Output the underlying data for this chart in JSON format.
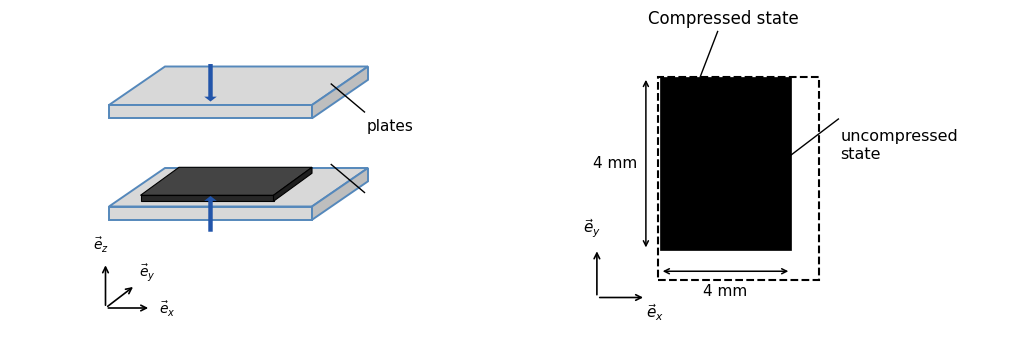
{
  "bg_color": "#ffffff",
  "left_panel": {
    "plate_color": "#d8d8d8",
    "plate_border_color": "#5588bb",
    "sample_dark": "#3a3a3a",
    "sample_darker": "#222222",
    "arrow_color": "#2255aa",
    "plates_label": "plates",
    "label_fontsize": 11
  },
  "right_panel": {
    "compressed_label": "Compressed state",
    "uncompressed_label": "uncompressed\nstate",
    "dim_label_v": "4 mm",
    "dim_label_h": "4 mm",
    "label_fontsize": 12
  },
  "axis_color": "#000000",
  "text_color": "#000000"
}
